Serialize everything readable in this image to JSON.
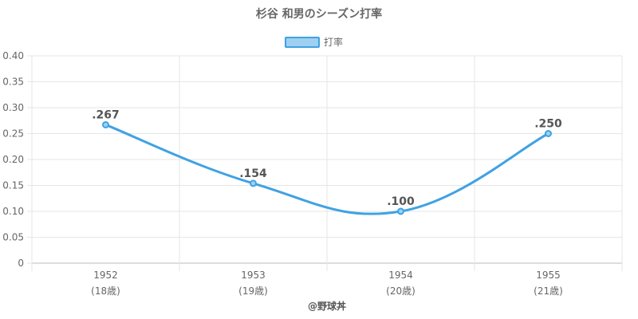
{
  "chart_data": {
    "type": "line",
    "title": "杉谷 和男のシーズン打率",
    "categories": [
      "1952",
      "1953",
      "1954",
      "1955"
    ],
    "category_sublabels": [
      "(18歳)",
      "(19歳)",
      "(20歳)",
      "(21歳)"
    ],
    "series": [
      {
        "name": "打率",
        "values": [
          0.267,
          0.154,
          0.1,
          0.25
        ],
        "labels": [
          ".267",
          ".154",
          ".100",
          ".250"
        ],
        "color": "#3fa2e3",
        "fill_color": "#9fd0f1"
      }
    ],
    "y_ticks": [
      "0",
      "0.05",
      "0.10",
      "0.15",
      "0.20",
      "0.25",
      "0.30",
      "0.35",
      "0.40"
    ],
    "ylim": [
      0,
      0.4
    ],
    "grid": true,
    "legend_position": "top-center"
  },
  "footer": "@野球丼"
}
